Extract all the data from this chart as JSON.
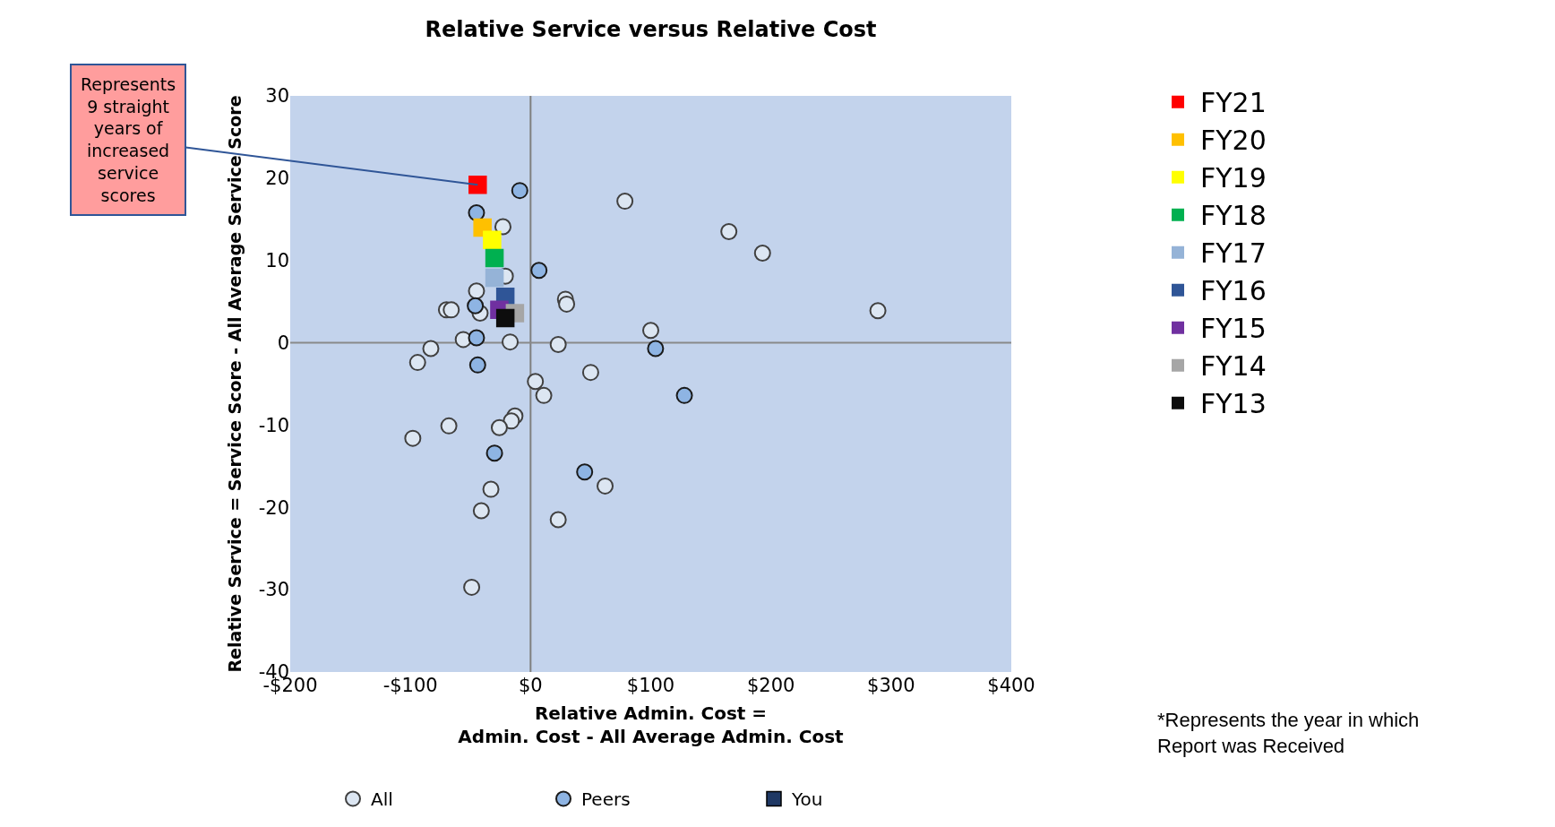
{
  "chart_data": {
    "type": "scatter",
    "title": "Relative Service versus Relative Cost",
    "xlabel": "Relative Admin. Cost =\nAdmin. Cost - All Average Admin. Cost",
    "ylabel": "Relative Service = Service Score - All Average Service Score",
    "xlim": [
      -200,
      400
    ],
    "xticks": [
      {
        "value": -200,
        "label": "-$200"
      },
      {
        "value": -100,
        "label": "-$100"
      },
      {
        "value": 0,
        "label": "$0"
      },
      {
        "value": 100,
        "label": "$100"
      },
      {
        "value": 200,
        "label": "$200"
      },
      {
        "value": 300,
        "label": "$300"
      },
      {
        "value": 400,
        "label": "$400"
      }
    ],
    "ylim": [
      -40,
      30
    ],
    "yticks": [
      -40,
      -30,
      -20,
      -10,
      0,
      10,
      20,
      30
    ],
    "legend": "right",
    "ref_lines": [
      {
        "axis": "x",
        "value": 0,
        "color": "#7f7f7f"
      },
      {
        "axis": "y",
        "value": 0,
        "color": "#898989"
      }
    ],
    "annotations": [
      {
        "text": "Represents\n9 straight\nyears of\nincreased\nservice\nscores",
        "x": -44,
        "y": 19.2
      },
      "*Represents the year in which\nReport was Received"
    ],
    "series": [
      {
        "name": "All",
        "color": "#dce6f2",
        "marker": "circle",
        "x": [
          78.5,
          165,
          193,
          289,
          100,
          29,
          30,
          -23,
          -45,
          -70,
          -66,
          -56,
          -83,
          -94,
          -17,
          23,
          4,
          11,
          50,
          -13,
          -16,
          -26,
          -68,
          -98,
          -33,
          -41,
          23,
          62,
          -49,
          -42,
          -21
        ],
        "values": [
          17.2,
          13.5,
          10.9,
          3.9,
          1.5,
          5.3,
          4.7,
          14.1,
          6.3,
          4,
          4,
          0.4,
          -0.7,
          -2.4,
          0.1,
          -0.2,
          -4.7,
          -6.4,
          -3.6,
          -8.9,
          -9.5,
          -10.3,
          -10.1,
          -11.6,
          -17.8,
          -20.4,
          -21.5,
          -17.4,
          -29.7,
          3.6,
          8.1
        ]
      },
      {
        "name": "Peers",
        "color": "#8eb4e3",
        "marker": "circle",
        "x": [
          -9,
          -45,
          7,
          -46,
          -45,
          -44,
          104,
          128,
          -30,
          45
        ],
        "values": [
          18.5,
          15.8,
          8.8,
          4.5,
          0.6,
          -2.7,
          -0.7,
          -6.4,
          -13.4,
          -15.7
        ]
      },
      {
        "name": "You",
        "color": "#1f3864",
        "marker": "square"
      },
      {
        "name": "FY21",
        "color": "#ff0000",
        "marker": "square",
        "x": [
          -44
        ],
        "values": [
          19.2
        ]
      },
      {
        "name": "FY20",
        "color": "#ffc000",
        "marker": "square",
        "x": [
          -40
        ],
        "values": [
          14.0
        ]
      },
      {
        "name": "FY19",
        "color": "#ffff00",
        "marker": "square",
        "x": [
          -32
        ],
        "values": [
          12.5
        ]
      },
      {
        "name": "FY18",
        "color": "#00b050",
        "marker": "square",
        "x": [
          -30
        ],
        "values": [
          10.3
        ]
      },
      {
        "name": "FY17",
        "color": "#95b3d7",
        "marker": "square",
        "x": [
          -30
        ],
        "values": [
          7.9
        ]
      },
      {
        "name": "FY16",
        "color": "#2f5597",
        "marker": "square",
        "x": [
          -21
        ],
        "values": [
          5.6
        ]
      },
      {
        "name": "FY15",
        "color": "#7030a0",
        "marker": "square",
        "x": [
          -26
        ],
        "values": [
          4.0
        ]
      },
      {
        "name": "FY14",
        "color": "#a6a6a6",
        "marker": "square",
        "x": [
          -13
        ],
        "values": [
          3.6
        ]
      },
      {
        "name": "FY13",
        "color": "#0d0d0d",
        "marker": "square",
        "x": [
          -21
        ],
        "values": [
          3.0
        ]
      }
    ]
  }
}
